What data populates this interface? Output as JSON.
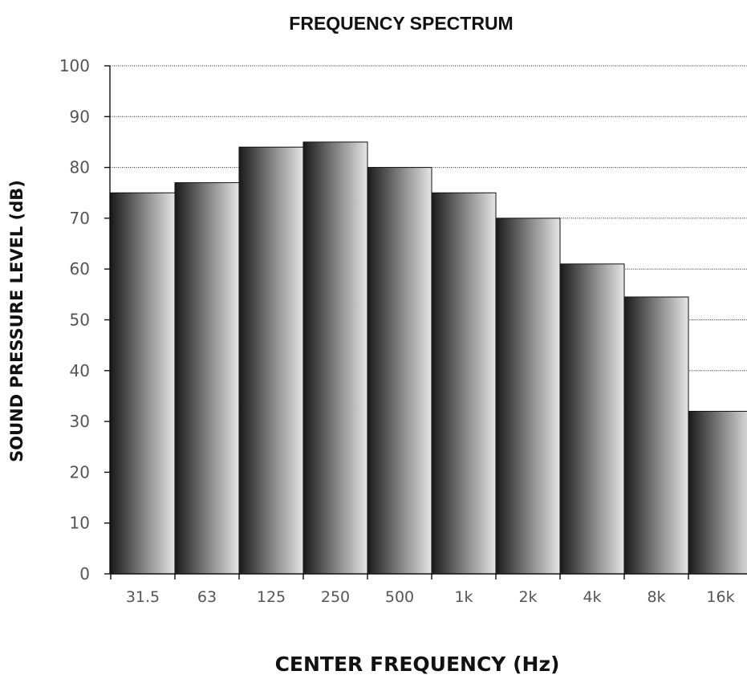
{
  "chart_data": {
    "type": "bar",
    "title": "FREQUENCY SPECTRUM",
    "xlabel": "CENTER FREQUENCY (Hz)",
    "ylabel": "SOUND PRESSURE LEVEL (dB)",
    "categories": [
      "31.5",
      "63",
      "125",
      "250",
      "500",
      "1k",
      "2k",
      "4k",
      "8k",
      "16k"
    ],
    "values": [
      75,
      77,
      84,
      85,
      80,
      75,
      70,
      61,
      54.5,
      32
    ],
    "ylim": [
      0,
      100
    ],
    "yticks": [
      "0",
      "10",
      "20",
      "30",
      "40",
      "50",
      "60",
      "70",
      "80",
      "90",
      "100"
    ],
    "grid": true,
    "bar_fill": "gradient dark-to-light (left to right)",
    "colors": {
      "bar_dark": "#1a1a1a",
      "bar_light": "#e6e6e6",
      "grid": "#222222",
      "text": "#111111"
    }
  }
}
